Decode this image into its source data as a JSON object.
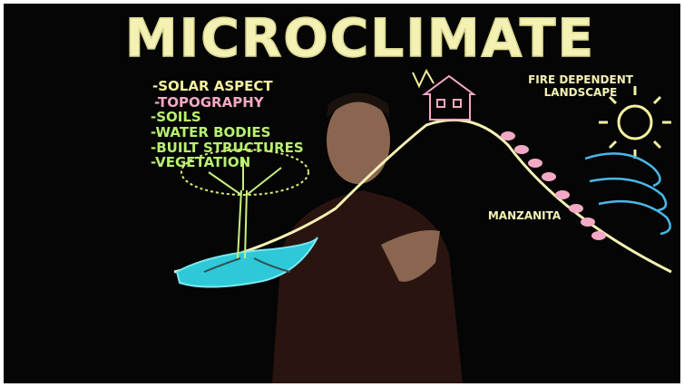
{
  "title": "MICROCLIMATE",
  "factors": [
    "-SOLAR ASPECT",
    "-TOPOGRAPHY",
    "-SOILS",
    "-WATER BODIES",
    "-BUILT STRUCTURES",
    "-VEGETATION"
  ],
  "fire_label": [
    "FIRE DEPENDENT",
    "LANDSCAPE"
  ],
  "plant_label": "MANZANITA"
}
